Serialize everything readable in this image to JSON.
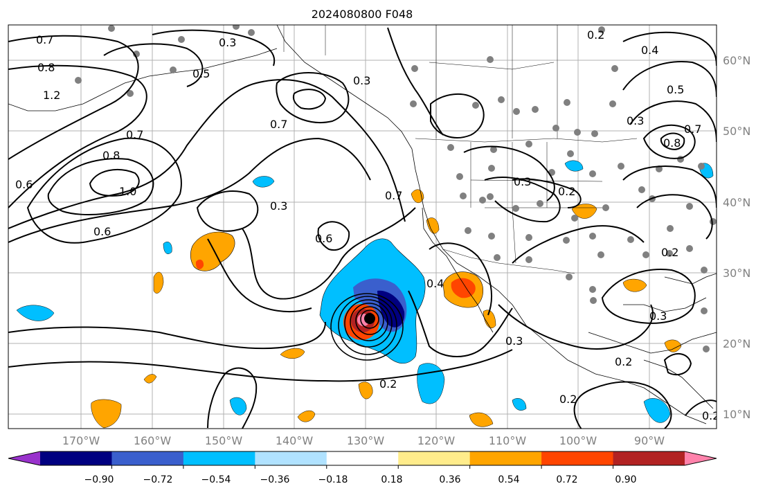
{
  "title": "2024080800 F048",
  "map": {
    "lon_labels": [
      "170°W",
      "160°W",
      "150°W",
      "140°W",
      "130°W",
      "120°W",
      "110°W",
      "100°W",
      "90°W"
    ],
    "lat_labels": [
      "60°N",
      "50°N",
      "40°N",
      "30°N",
      "20°N",
      "10°N"
    ]
  },
  "colorbar": {
    "ticks": [
      "−0.90",
      "−0.72",
      "−0.54",
      "−0.36",
      "−0.18",
      "0.18",
      "0.36",
      "0.54",
      "0.72",
      "0.90"
    ],
    "colors": [
      "#9932cc",
      "#000080",
      "#3a5fcd",
      "#00bfff",
      "#b0e2ff",
      "#ffffff",
      "#ffec8b",
      "#ffa500",
      "#ff4500",
      "#b22222",
      "#ff82ab"
    ]
  },
  "fill_colors": {
    "neg_extreme": "#9932cc",
    "neg_strong": "#000080",
    "neg_med": "#3a5fcd",
    "neg_mid": "#00bfff",
    "neg_weak": "#b0e2ff",
    "pos_weak": "#ffec8b",
    "pos_mid": "#ffa500",
    "pos_med": "#ff4500",
    "pos_strong": "#b22222",
    "pos_extreme": "#ff82ab"
  },
  "contour_labels": [
    "0.7",
    "0.8",
    "1.2",
    "0.3",
    "0.5",
    "0.3",
    "0.7",
    "0.7",
    "0.8",
    "1.0",
    "0.6",
    "0.6",
    "0.3",
    "0.6",
    "0.7",
    "0.4",
    "0.2",
    "0.2",
    "0.3",
    "0.3",
    "0.2",
    "0.2",
    "0.4",
    "0.5",
    "0.3",
    "0.8",
    "0.7",
    "0.2",
    "0.2",
    "0.2",
    "0.3"
  ]
}
